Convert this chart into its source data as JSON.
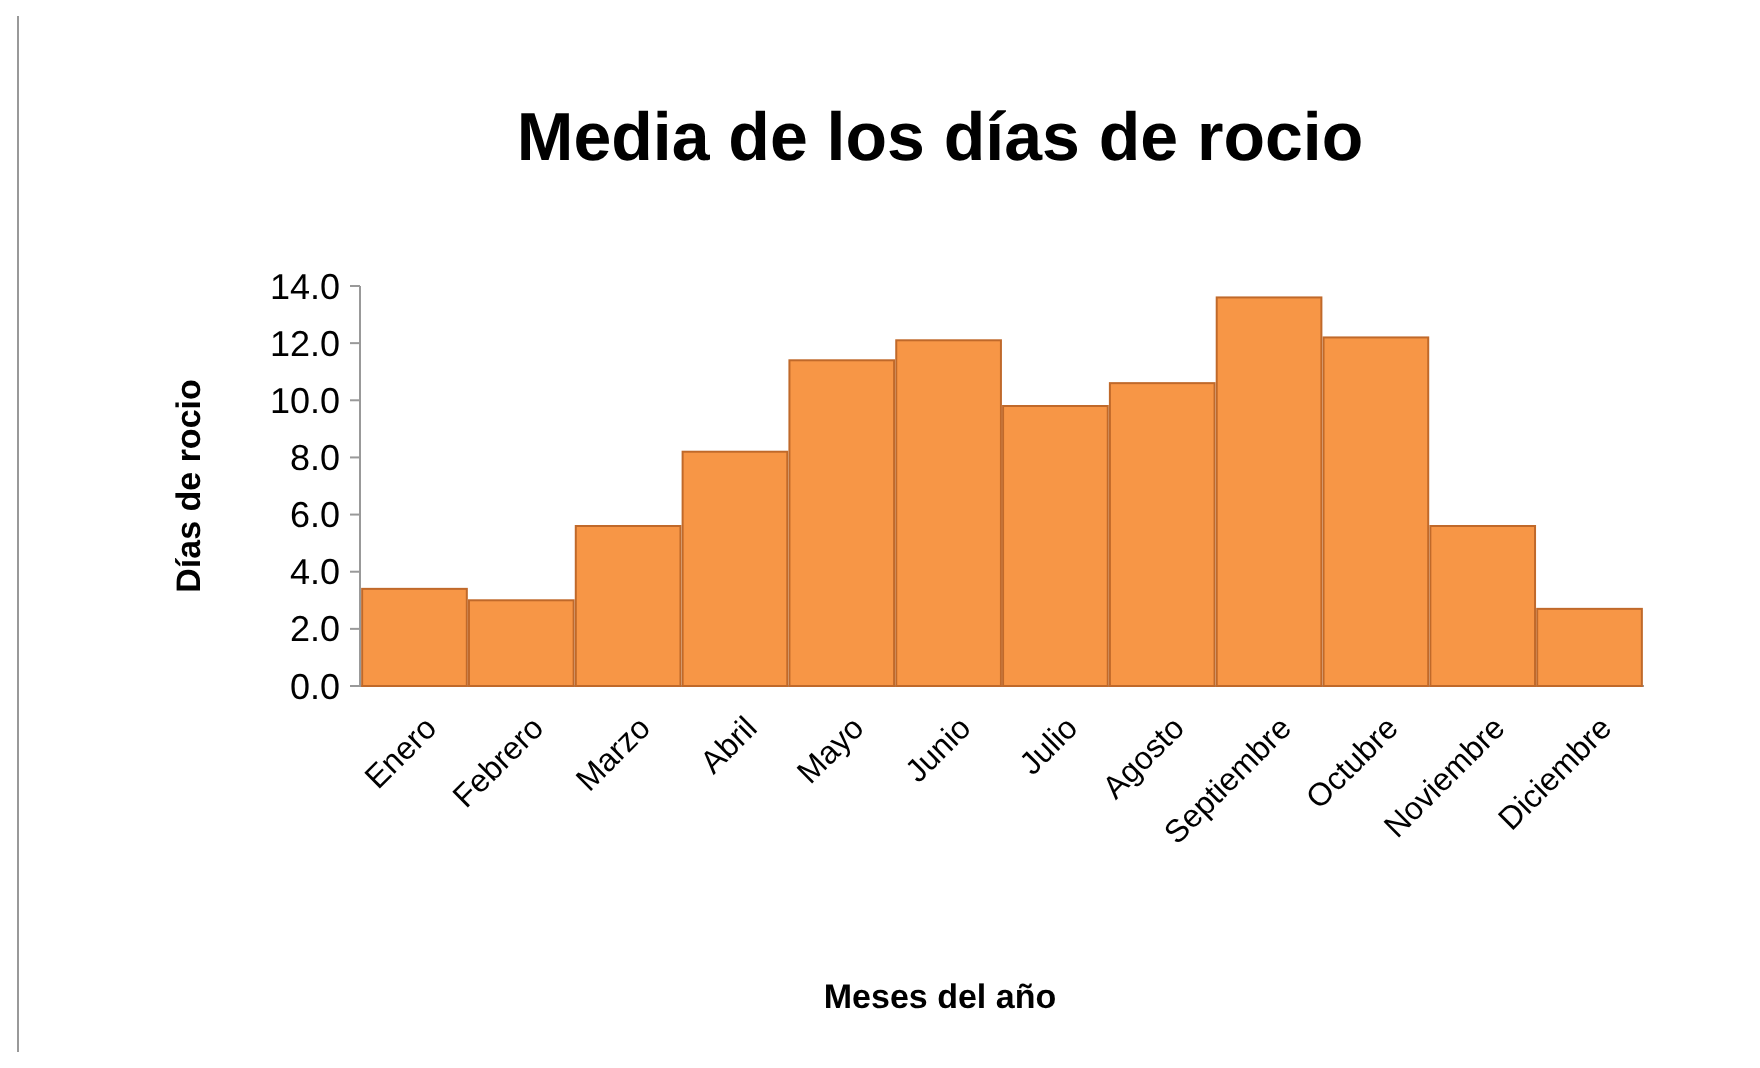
{
  "chart_data": {
    "type": "bar",
    "title": "Media de los días de rocio",
    "xlabel": "Meses del año",
    "ylabel": "Días de rocio",
    "categories": [
      "Enero",
      "Febrero",
      "Marzo",
      "Abril",
      "Mayo",
      "Junio",
      "Julio",
      "Agosto",
      "Septiembre",
      "Octubre",
      "Noviembre",
      "Diciembre"
    ],
    "values": [
      3.4,
      3.0,
      5.6,
      8.2,
      11.4,
      12.1,
      9.8,
      10.6,
      13.6,
      12.2,
      5.6,
      2.7
    ],
    "color": "#f79646",
    "ylim": [
      0,
      14
    ],
    "yticks": [
      {
        "value": 0,
        "label": "0.0"
      },
      {
        "value": 2,
        "label": "2.0"
      },
      {
        "value": 4,
        "label": "4.0"
      },
      {
        "value": 6,
        "label": "6.0"
      },
      {
        "value": 8,
        "label": "8.0"
      },
      {
        "value": 10,
        "label": "10.0"
      },
      {
        "value": 12,
        "label": "12.0"
      },
      {
        "value": 14,
        "label": "14.0"
      }
    ]
  }
}
